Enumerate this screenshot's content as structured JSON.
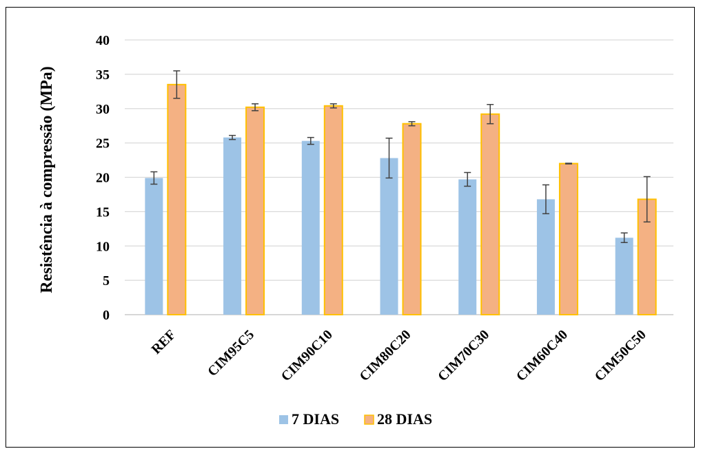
{
  "chart_data": {
    "type": "bar",
    "title": "",
    "xlabel": "",
    "ylabel": "Resistência à compressão (MPa)",
    "ylim": [
      0,
      40
    ],
    "yticks": [
      0,
      5,
      10,
      15,
      20,
      25,
      30,
      35,
      40
    ],
    "grid": true,
    "legend_position": "bottom",
    "categories": [
      "REF",
      "CIM95C5",
      "CIM90C10",
      "CIM80C20",
      "CIM70C30",
      "CIM60C40",
      "CIM50C50"
    ],
    "series": [
      {
        "name": "7 DIAS",
        "color": "#9dc3e6",
        "values": [
          19.9,
          25.8,
          25.3,
          22.8,
          19.7,
          16.8,
          11.2
        ],
        "errors": [
          0.9,
          0.3,
          0.5,
          2.9,
          1.0,
          2.1,
          0.7
        ]
      },
      {
        "name": "28 DIAS",
        "color": "#f4b183",
        "edge_color": "#ffc000",
        "values": [
          33.5,
          30.2,
          30.4,
          27.8,
          29.2,
          22.0,
          16.8
        ],
        "errors": [
          2.0,
          0.5,
          0.3,
          0.3,
          1.4,
          0.05,
          3.3
        ]
      }
    ]
  }
}
